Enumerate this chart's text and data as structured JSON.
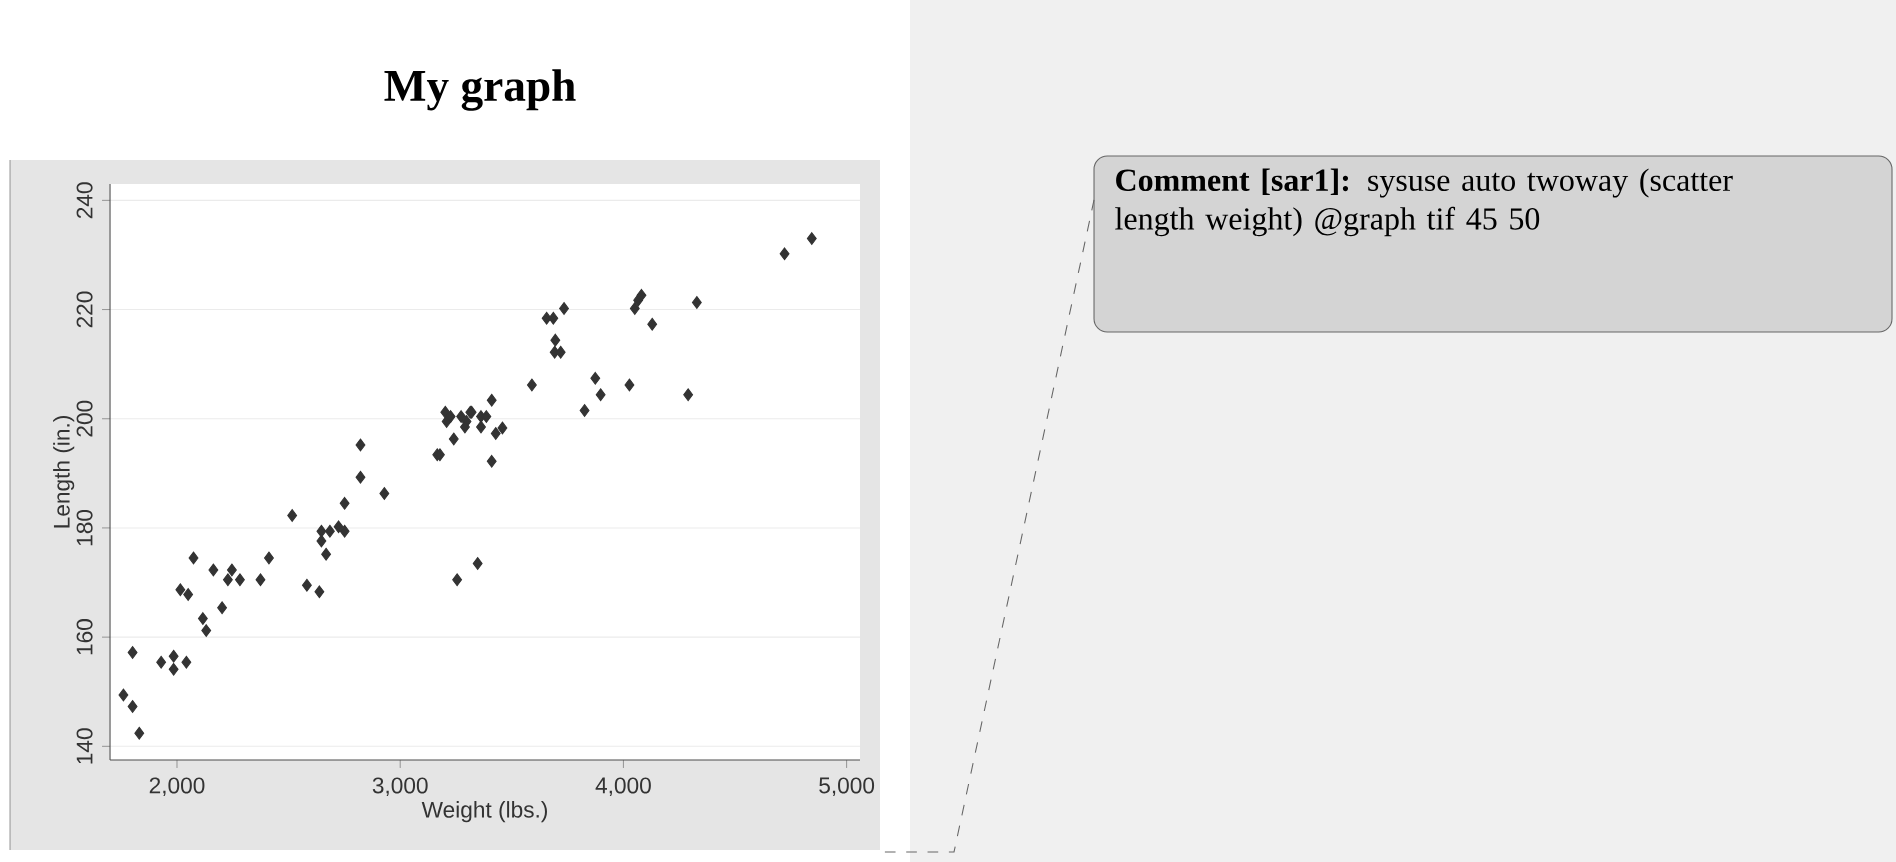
{
  "chart_data": {
    "type": "scatter",
    "title": "My graph",
    "xlabel": "Weight (lbs.)",
    "ylabel": "Length (in.)",
    "x": [
      1760,
      1801,
      1801,
      1831,
      1929,
      1985,
      1985,
      2042,
      2015,
      2050,
      2074,
      2116,
      2131,
      2163,
      2202,
      2228,
      2246,
      2282,
      2374,
      2412,
      2516,
      2582,
      2638,
      2647,
      2647,
      2668,
      2685,
      2724,
      2751,
      2751,
      2822,
      2822,
      2929,
      3166,
      3178,
      3202,
      3208,
      3226,
      3240,
      3255,
      3273,
      3297,
      3320,
      3347,
      3290,
      3314,
      3362,
      3362,
      3386,
      3410,
      3410,
      3428,
      3458,
      3590,
      3656,
      3686,
      3695,
      3692,
      3719,
      3734,
      3826,
      3874,
      3898,
      4027,
      4051,
      4066,
      4081,
      4129,
      4290,
      4329,
      4722,
      4844
    ],
    "values": [
      149.4,
      157.2,
      147.3,
      142.4,
      155.4,
      156.5,
      154.1,
      155.4,
      168.7,
      167.8,
      174.5,
      163.4,
      161.2,
      172.3,
      165.4,
      170.5,
      172.3,
      170.5,
      170.5,
      174.5,
      182.3,
      169.5,
      168.3,
      177.6,
      179.4,
      175.2,
      179.4,
      180.2,
      179.4,
      184.5,
      195.2,
      189.3,
      186.3,
      193.4,
      193.4,
      201.2,
      199.5,
      200.4,
      196.3,
      170.5,
      200.4,
      199.5,
      201.2,
      173.5,
      198.5,
      201.2,
      200.4,
      198.5,
      200.4,
      203.4,
      192.2,
      197.3,
      198.3,
      206.2,
      218.4,
      218.4,
      214.4,
      212.2,
      212.2,
      220.2,
      201.5,
      207.4,
      204.4,
      206.2,
      220.2,
      221.7,
      222.6,
      217.3,
      204.4,
      221.3,
      230.2,
      233.0
    ],
    "color": "#333333",
    "marker": "diamond",
    "grid": "y",
    "xlim": [
      1700,
      5060
    ],
    "ylim": [
      137.5,
      243
    ],
    "xticks": [
      {
        "value": 2000,
        "label": "2,000"
      },
      {
        "value": 3000,
        "label": "3,000"
      },
      {
        "value": 4000,
        "label": "4,000"
      },
      {
        "value": 5000,
        "label": "5,000"
      }
    ],
    "yticks": [
      140,
      160,
      180,
      200,
      220,
      240
    ],
    "annotations": [
      "**Comment [sar1]:** sysuse auto twoway (scatter length weight) @graph tif 45 50"
    ]
  }
}
